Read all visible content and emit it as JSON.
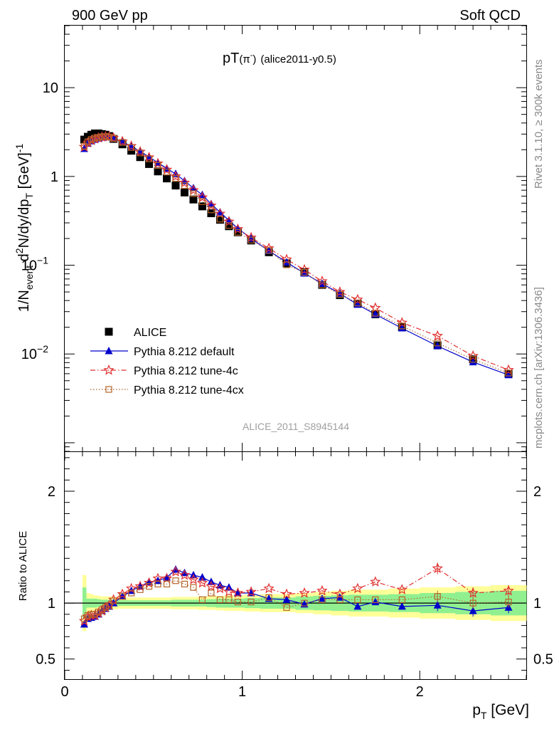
{
  "header": {
    "left": "900 GeV pp",
    "right": "Soft QCD"
  },
  "side_text": {
    "rivet": "Rivet 3.1.10, ≥ 300k events",
    "url": "mcplots.cern.ch [arXiv:1306.3436]"
  },
  "plot_title": {
    "main": "pT",
    "particle": "(π",
    "charge": "-",
    "close": ")",
    "tag": "(alice2011-y0.5)"
  },
  "analysis_id": "ALICE_2011_S8945144",
  "colors": {
    "alice": "#000000",
    "default": "#0000cc",
    "tune4c": "#e03030",
    "tune4cx": "#b5652a",
    "band_inner": "#90f090",
    "band_outer": "#ffff99"
  },
  "chart_data": [
    {
      "type": "scatter",
      "log_y": true,
      "xlim": [
        0,
        2.6
      ],
      "ylim": [
        0.0008,
        50
      ],
      "ylabel": {
        "a": "1/N",
        "a_sub": "event",
        "b": " d",
        "b_sup": "2",
        "c": "N/dy/dp",
        "c_sub": "T",
        "d": " [GeV]",
        "d_sup": "-1"
      },
      "yticks": [
        {
          "v": 10,
          "label": "10"
        },
        {
          "v": 1,
          "label": "1"
        },
        {
          "v": 0.1,
          "label": "10",
          "sup": "−1"
        },
        {
          "v": 0.01,
          "label": "10",
          "sup": "−2"
        }
      ],
      "x": [
        0.11,
        0.13,
        0.15,
        0.17,
        0.19,
        0.21,
        0.23,
        0.25,
        0.275,
        0.325,
        0.375,
        0.425,
        0.475,
        0.525,
        0.575,
        0.625,
        0.675,
        0.725,
        0.775,
        0.825,
        0.875,
        0.925,
        0.975,
        1.05,
        1.15,
        1.25,
        1.35,
        1.45,
        1.55,
        1.65,
        1.75,
        1.9,
        2.1,
        2.3,
        2.5
      ],
      "series": [
        {
          "key": "alice",
          "name": "ALICE",
          "marker": "square",
          "values": [
            2.6,
            2.8,
            2.95,
            3.05,
            3.05,
            3.0,
            2.95,
            2.85,
            2.65,
            2.3,
            1.95,
            1.65,
            1.38,
            1.14,
            0.95,
            0.79,
            0.66,
            0.55,
            0.46,
            0.385,
            0.325,
            0.275,
            0.235,
            0.19,
            0.14,
            0.105,
            0.083,
            0.06,
            0.046,
            0.037,
            0.028,
            0.02,
            0.0125,
            0.0087,
            0.006
          ]
        },
        {
          "key": "default",
          "name": "Pythia 8.212 default",
          "marker": "triangle",
          "line": "solid",
          "values": [
            2.05,
            2.35,
            2.5,
            2.6,
            2.68,
            2.75,
            2.8,
            2.78,
            2.7,
            2.47,
            2.18,
            1.92,
            1.66,
            1.43,
            1.23,
            1.07,
            0.89,
            0.74,
            0.62,
            0.49,
            0.395,
            0.32,
            0.26,
            0.2,
            0.145,
            0.108,
            0.081,
            0.062,
            0.048,
            0.036,
            0.028,
            0.0195,
            0.0123,
            0.0081,
            0.0058
          ]
        },
        {
          "key": "tune4c",
          "name": "Pythia 8.212 tune-4c",
          "marker": "star",
          "line": "dashdot",
          "values": [
            2.15,
            2.4,
            2.55,
            2.65,
            2.72,
            2.78,
            2.82,
            2.8,
            2.72,
            2.48,
            2.2,
            1.9,
            1.64,
            1.4,
            1.19,
            1.0,
            0.85,
            0.7,
            0.58,
            0.47,
            0.38,
            0.31,
            0.255,
            0.205,
            0.155,
            0.116,
            0.089,
            0.066,
            0.05,
            0.041,
            0.033,
            0.0225,
            0.016,
            0.0095,
            0.0066
          ]
        },
        {
          "key": "tune4cx",
          "name": "Pythia 8.212 tune-4cx",
          "marker": "open_square",
          "line": "dotted",
          "values": [
            2.2,
            2.45,
            2.6,
            2.7,
            2.75,
            2.8,
            2.82,
            2.78,
            2.68,
            2.42,
            2.12,
            1.84,
            1.58,
            1.33,
            1.12,
            0.95,
            0.79,
            0.64,
            0.52,
            0.42,
            0.33,
            0.28,
            0.235,
            0.192,
            0.147,
            0.101,
            0.083,
            0.06,
            0.047,
            0.0375,
            0.0288,
            0.0207,
            0.0133,
            0.0087,
            0.0061
          ]
        }
      ]
    },
    {
      "type": "scatter",
      "xlim": [
        0,
        2.6
      ],
      "ylim": [
        0.32,
        2.35
      ],
      "ylabel": "Ratio to ALICE",
      "xlabel": {
        "a": "p",
        "a_sub": "T",
        "b": " [GeV]"
      },
      "yticks": [
        {
          "v": 2,
          "label": "2"
        },
        {
          "v": 1,
          "label": "1"
        },
        {
          "v": 0.5,
          "label": "0.5"
        }
      ],
      "xticks": [
        {
          "v": 0,
          "label": "0"
        },
        {
          "v": 1,
          "label": "1"
        },
        {
          "v": 2,
          "label": "2"
        }
      ],
      "band_inner": [
        0.14,
        0.04,
        0.04,
        0.04,
        0.035,
        0.03,
        0.03,
        0.03,
        0.03,
        0.025,
        0.025,
        0.025,
        0.025,
        0.025,
        0.025,
        0.03,
        0.03,
        0.03,
        0.03,
        0.035,
        0.04,
        0.04,
        0.04,
        0.045,
        0.05,
        0.05,
        0.06,
        0.065,
        0.07,
        0.075,
        0.075,
        0.08,
        0.09,
        0.1,
        0.11
      ],
      "band_outer": [
        0.25,
        0.09,
        0.08,
        0.07,
        0.065,
        0.06,
        0.06,
        0.06,
        0.055,
        0.05,
        0.05,
        0.05,
        0.05,
        0.05,
        0.05,
        0.055,
        0.055,
        0.055,
        0.06,
        0.06,
        0.065,
        0.07,
        0.07,
        0.075,
        0.08,
        0.08,
        0.09,
        0.1,
        0.11,
        0.12,
        0.12,
        0.13,
        0.14,
        0.15,
        0.16
      ],
      "series": [
        {
          "key": "default",
          "marker": "triangle",
          "line": "solid",
          "values": [
            0.81,
            0.86,
            0.87,
            0.88,
            0.9,
            0.93,
            0.95,
            0.97,
            1.0,
            1.06,
            1.11,
            1.15,
            1.19,
            1.2,
            1.23,
            1.3,
            1.27,
            1.25,
            1.23,
            1.19,
            1.16,
            1.14,
            1.09,
            1.09,
            1.04,
            1.03,
            0.99,
            1.04,
            1.05,
            0.97,
            1.01,
            0.97,
            0.98,
            0.93,
            0.96
          ]
        },
        {
          "key": "tune4c",
          "marker": "star",
          "line": "dashdot",
          "values": [
            0.84,
            0.88,
            0.89,
            0.89,
            0.91,
            0.93,
            0.96,
            0.98,
            1.03,
            1.08,
            1.13,
            1.15,
            1.18,
            1.22,
            1.22,
            1.28,
            1.25,
            1.21,
            1.18,
            1.15,
            1.13,
            1.1,
            1.09,
            1.1,
            1.13,
            1.08,
            1.09,
            1.11,
            1.08,
            1.13,
            1.19,
            1.12,
            1.31,
            1.09,
            1.11
          ]
        },
        {
          "key": "tune4cx",
          "marker": "open_square",
          "line": "dotted",
          "values": [
            0.86,
            0.89,
            0.9,
            0.9,
            0.92,
            0.94,
            0.96,
            0.98,
            1.02,
            1.06,
            1.09,
            1.12,
            1.15,
            1.17,
            1.17,
            1.2,
            1.17,
            1.14,
            1.03,
            1.09,
            1.03,
            1.03,
            1.01,
            1.01,
            1.05,
            0.96,
            1.0,
            1.03,
            1.03,
            1.03,
            1.03,
            1.03,
            1.06,
            1.0,
            1.01
          ]
        }
      ]
    }
  ]
}
